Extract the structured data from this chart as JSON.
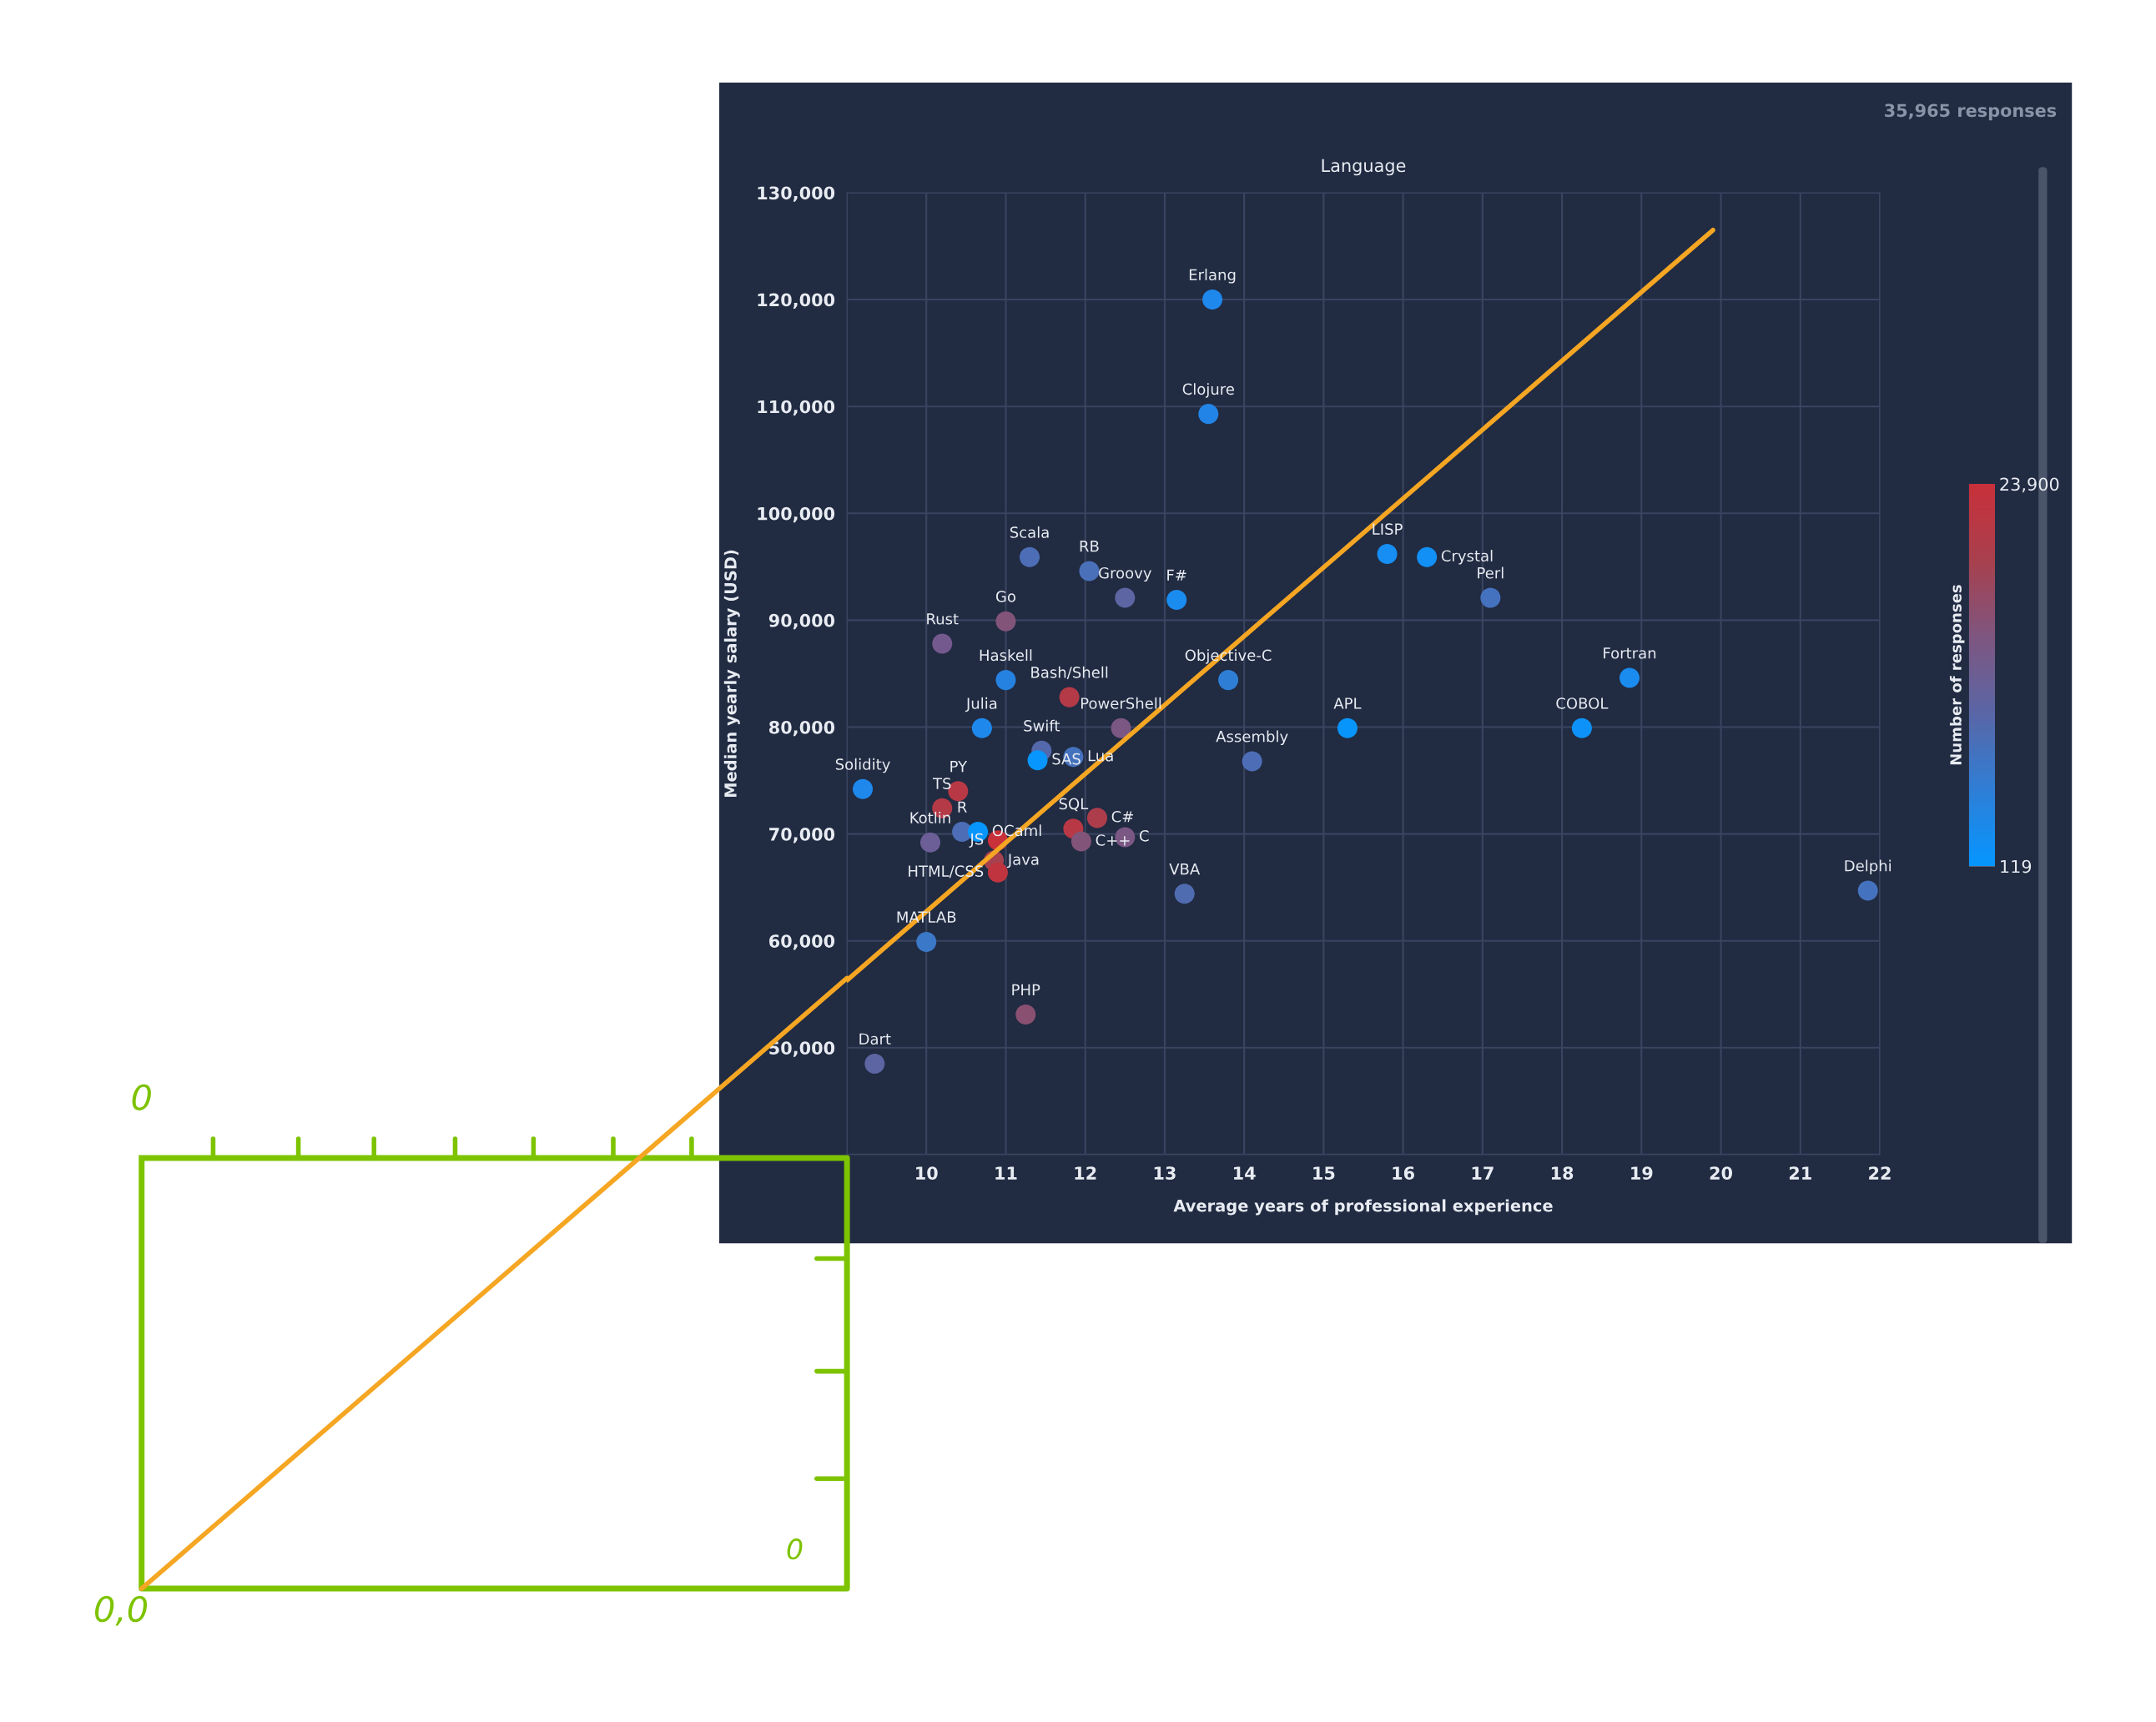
{
  "chart_data": {
    "type": "scatter",
    "title": "Language",
    "xlabel": "Average years of professional experience",
    "ylabel": "Median yearly salary (USD)",
    "clabel": "Number of responses",
    "xlim": [
      9,
      22
    ],
    "xticks": [
      {
        "value": 9,
        "label": null
      },
      10,
      11,
      12,
      13,
      14,
      15,
      16,
      17,
      18,
      19,
      20,
      21,
      22
    ],
    "ylim": [
      40000,
      130000
    ],
    "yticks": [
      {
        "value": 40000,
        "label": null
      },
      {
        "value": 50000,
        "label": "50,000"
      },
      {
        "value": 60000,
        "label": "60,000"
      },
      {
        "value": 70000,
        "label": "70,000"
      },
      {
        "value": 80000,
        "label": "80,000"
      },
      {
        "value": 90000,
        "label": "90,000"
      },
      {
        "value": 100000,
        "label": "100,000"
      },
      {
        "value": 110000,
        "label": "110,000"
      },
      {
        "value": 120000,
        "label": "120,000"
      },
      {
        "value": 130000,
        "label": "130,000"
      }
    ],
    "clim": [
      119,
      23900
    ],
    "cticks": [
      {
        "value": 119,
        "label": "119"
      },
      {
        "value": 23900,
        "label": "23,900"
      }
    ],
    "grid": true,
    "legend": false,
    "marker": "circle",
    "series": [
      {
        "type": "line",
        "marker": "none",
        "color": "#f5a623",
        "x": [
          9,
          19.9
        ],
        "values": [
          56300,
          126500
        ]
      },
      {
        "x": [
          13.6,
          13.55,
          11.3,
          12.05,
          12.5,
          13.15,
          11.0,
          10.2,
          11.0,
          11.8,
          12.45,
          10.7,
          11.45,
          11.4,
          11.85,
          9.2,
          10.4,
          10.2,
          10.45,
          10.65,
          10.9,
          10.85,
          10.9,
          10.05,
          11.85,
          12.15,
          11.95,
          12.5,
          13.25,
          10.0,
          11.25,
          9.35,
          13.8,
          14.1,
          15.3,
          15.8,
          16.3,
          17.1,
          18.85,
          18.25,
          21.85
        ],
        "values": [
          120000,
          109300,
          95900,
          94600,
          92100,
          91900,
          89900,
          87800,
          84400,
          82800,
          79900,
          79900,
          77800,
          76900,
          77200,
          74200,
          74000,
          72400,
          70200,
          70200,
          69400,
          67500,
          66400,
          69200,
          70500,
          71500,
          69300,
          69700,
          64400,
          59900,
          53100,
          48500,
          84400,
          76800,
          79900,
          96200,
          95900,
          92100,
          84600,
          79900,
          64700
        ],
        "colors": [
          "#1e88ec",
          "#2184e6",
          "#4d6eb6",
          "#4a70ba",
          "#5d65a2",
          "#1a8cf0",
          "#82547a",
          "#74598e",
          "#2582e0",
          "#b43a48",
          "#7b5784",
          "#1e88ec",
          "#5469ac",
          "#0796fd",
          "#4572be",
          "#1e88ec",
          "#b83845",
          "#b43a48",
          "#4d6eb6",
          "#0796fd",
          "#c8303a",
          "#a6414f",
          "#c0343f",
          "#6c5e96",
          "#b83845",
          "#ae3d4c",
          "#82547a",
          "#7b5784",
          "#506cb0",
          "#3b78c8",
          "#8a5072",
          "#5d65a2",
          "#2f7ed6",
          "#4d6eb6",
          "#0895fb",
          "#168ef4",
          "#1290f6",
          "#4572be",
          "#1a8cf0",
          "#0d92f9",
          "#4572be"
        ]
      }
    ],
    "annotations": [
      "35,965 responses",
      "0",
      "0,0",
      "0",
      {
        "text": "Erlang",
        "x": 13.6,
        "y": 120000
      },
      {
        "text": "Clojure",
        "x": 13.55,
        "y": 109300
      },
      {
        "text": "Scala",
        "x": 11.3,
        "y": 95900
      },
      {
        "text": "RB",
        "x": 12.05,
        "y": 94600
      },
      {
        "text": "Groovy",
        "x": 12.5,
        "y": 92100
      },
      {
        "text": "F#",
        "x": 13.15,
        "y": 91900
      },
      {
        "text": "Go",
        "x": 11.0,
        "y": 89900
      },
      {
        "text": "Rust",
        "x": 10.2,
        "y": 87800
      },
      {
        "text": "Haskell",
        "x": 11.0,
        "y": 84400
      },
      {
        "text": "Bash/Shell",
        "x": 11.8,
        "y": 82800
      },
      {
        "text": "PowerShell",
        "x": 12.45,
        "y": 79900
      },
      {
        "text": "Julia",
        "x": 10.7,
        "y": 79900
      },
      {
        "text": "Swift",
        "x": 11.45,
        "y": 77800
      },
      {
        "text": "SAS",
        "x": 11.4,
        "y": 76900
      },
      {
        "text": "Lua",
        "x": 11.85,
        "y": 77200
      },
      {
        "text": "Solidity",
        "x": 9.2,
        "y": 74200
      },
      {
        "text": "PY",
        "x": 10.4,
        "y": 74000
      },
      {
        "text": "TS",
        "x": 10.2,
        "y": 72400
      },
      {
        "text": "R",
        "x": 10.45,
        "y": 70200
      },
      {
        "text": "OCaml",
        "x": 10.65,
        "y": 70200
      },
      {
        "text": "JS",
        "x": 10.9,
        "y": 69400
      },
      {
        "text": "Java",
        "x": 10.85,
        "y": 67500
      },
      {
        "text": "HTML/CSS",
        "x": 10.9,
        "y": 66400
      },
      {
        "text": "Kotlin",
        "x": 10.05,
        "y": 69200
      },
      {
        "text": "SQL",
        "x": 11.85,
        "y": 70500
      },
      {
        "text": "C#",
        "x": 12.15,
        "y": 71500
      },
      {
        "text": "C++",
        "x": 11.95,
        "y": 69300
      },
      {
        "text": "C",
        "x": 12.5,
        "y": 69700
      },
      {
        "text": "VBA",
        "x": 13.25,
        "y": 64400
      },
      {
        "text": "MATLAB",
        "x": 10.0,
        "y": 59900
      },
      {
        "text": "PHP",
        "x": 11.25,
        "y": 53100
      },
      {
        "text": "Dart",
        "x": 9.35,
        "y": 48500
      },
      {
        "text": "Objective-C",
        "x": 13.8,
        "y": 84400
      },
      {
        "text": "Assembly",
        "x": 14.1,
        "y": 76800
      },
      {
        "text": "APL",
        "x": 15.3,
        "y": 79900
      },
      {
        "text": "LISP",
        "x": 15.8,
        "y": 96200
      },
      {
        "text": "Crystal",
        "x": 16.3,
        "y": 95900
      },
      {
        "text": "Perl",
        "x": 17.1,
        "y": 92100
      },
      {
        "text": "Fortran",
        "x": 18.85,
        "y": 84600
      },
      {
        "text": "COBOL",
        "x": 18.25,
        "y": 79900
      },
      {
        "text": "Delphi",
        "x": 21.85,
        "y": 64700
      }
    ]
  }
}
